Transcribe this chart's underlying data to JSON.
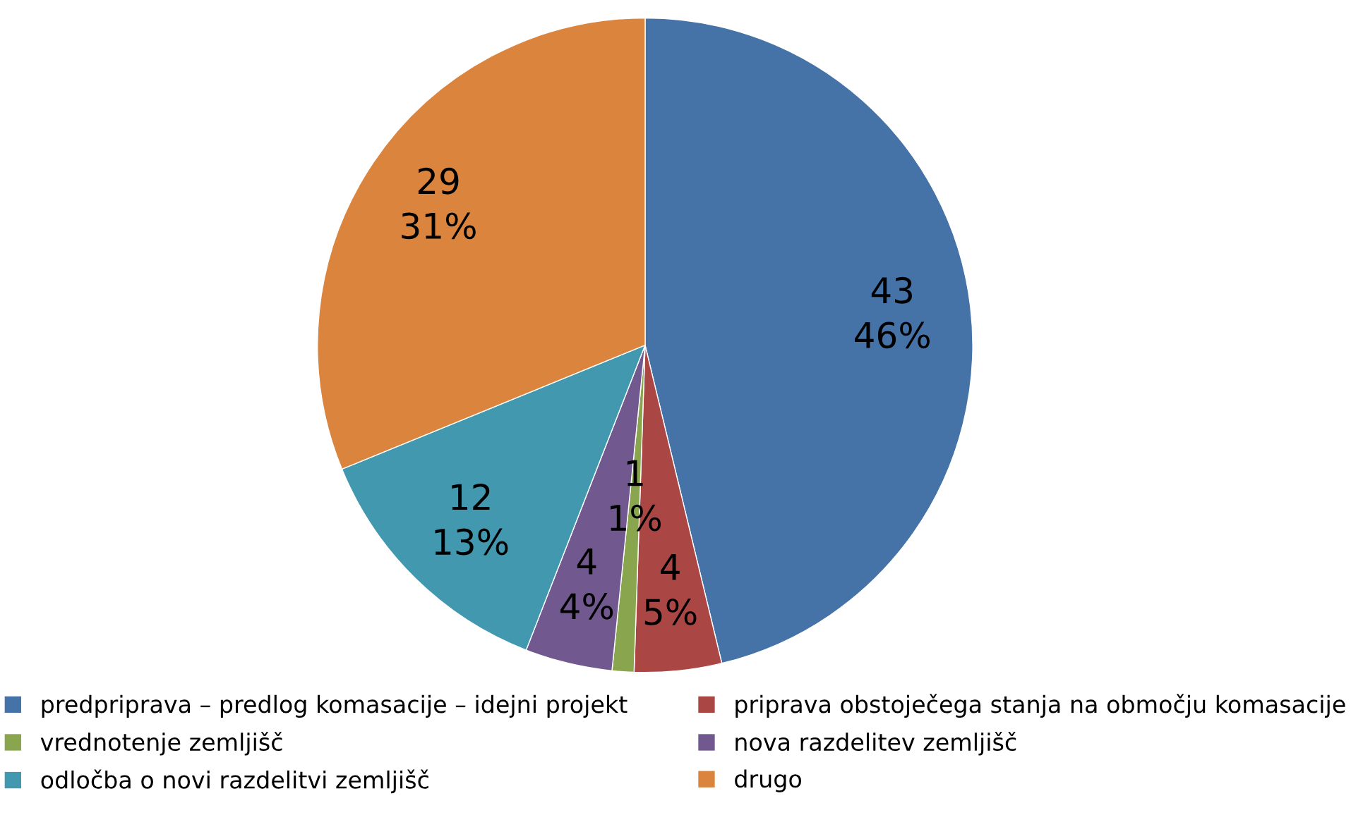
{
  "chart_data": {
    "type": "pie",
    "categories": [
      "predpriprava – predlog komasacije – idejni projekt",
      "priprava obstoječega stanja na območju komasacije",
      "vrednotenje zemljišč",
      "nova razdelitev zemljišč",
      "odločba o novi razdelitvi zemljišč",
      "drugo"
    ],
    "values": [
      43,
      4,
      1,
      4,
      12,
      29
    ],
    "value_labels": [
      "43\n46%",
      "4\n5%",
      "1\n1%",
      "4\n4%",
      "12\n13%",
      "29\n31%"
    ],
    "colors": [
      "#4572a7",
      "#aa4643",
      "#89a54e",
      "#71588f",
      "#4198af",
      "#db843d"
    ],
    "legend": "bottom"
  }
}
